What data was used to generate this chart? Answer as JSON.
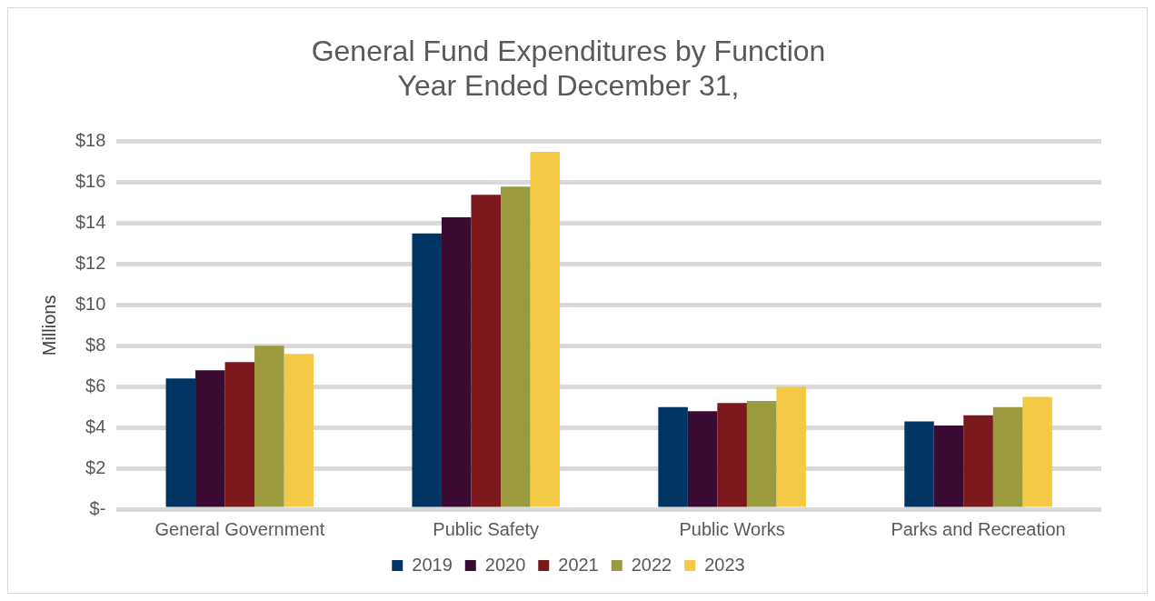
{
  "chart_data": {
    "type": "bar",
    "title": "General Fund Expenditures by Function",
    "subtitle": "Year Ended December 31,",
    "ylabel": "Millions",
    "categories": [
      "General Government",
      "Public Safety",
      "Public Works",
      "Parks and Recreation"
    ],
    "series": [
      {
        "name": "2019",
        "color": "#003463",
        "values": [
          6.4,
          13.5,
          5.0,
          4.3
        ]
      },
      {
        "name": "2020",
        "color": "#3a0a30",
        "values": [
          6.8,
          14.3,
          4.8,
          4.1
        ]
      },
      {
        "name": "2021",
        "color": "#7b181b",
        "values": [
          7.2,
          15.4,
          5.2,
          4.6
        ]
      },
      {
        "name": "2022",
        "color": "#9c9a3e",
        "values": [
          8.0,
          15.8,
          5.3,
          5.0
        ]
      },
      {
        "name": "2023",
        "color": "#f4c945",
        "values": [
          7.6,
          17.5,
          6.0,
          5.5
        ]
      }
    ],
    "ylim": [
      0,
      18
    ],
    "yticks": [
      {
        "value": 0,
        "label": "$-"
      },
      {
        "value": 2,
        "label": "$2"
      },
      {
        "value": 4,
        "label": "$4"
      },
      {
        "value": 6,
        "label": "$6"
      },
      {
        "value": 8,
        "label": "$8"
      },
      {
        "value": 10,
        "label": "$10"
      },
      {
        "value": 12,
        "label": "$12"
      },
      {
        "value": 14,
        "label": "$14"
      },
      {
        "value": 16,
        "label": "$16"
      },
      {
        "value": 18,
        "label": "$18"
      }
    ],
    "grid": "y",
    "legend": "bottom"
  }
}
